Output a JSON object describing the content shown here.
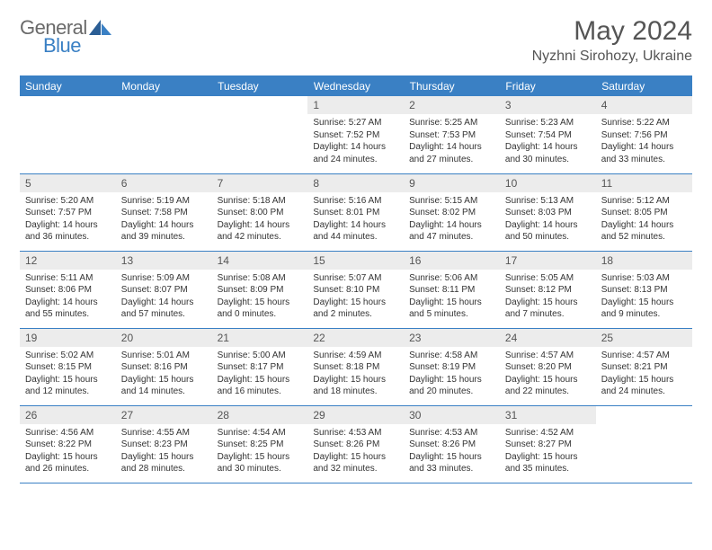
{
  "logo": {
    "text1": "General",
    "text2": "Blue"
  },
  "title": "May 2024",
  "location": "Nyzhni Sirohozy, Ukraine",
  "colors": {
    "header_bg": "#3a80c4",
    "header_text": "#ffffff",
    "daynum_bg": "#ececec",
    "rule": "#3a80c4",
    "title_text": "#555555",
    "logo_gray": "#6a6a6a",
    "logo_blue": "#3a80c4"
  },
  "weekdays": [
    "Sunday",
    "Monday",
    "Tuesday",
    "Wednesday",
    "Thursday",
    "Friday",
    "Saturday"
  ],
  "weeks": [
    [
      {
        "n": "",
        "sr": "",
        "ss": "",
        "dl": ""
      },
      {
        "n": "",
        "sr": "",
        "ss": "",
        "dl": ""
      },
      {
        "n": "",
        "sr": "",
        "ss": "",
        "dl": ""
      },
      {
        "n": "1",
        "sr": "Sunrise: 5:27 AM",
        "ss": "Sunset: 7:52 PM",
        "dl": "Daylight: 14 hours and 24 minutes."
      },
      {
        "n": "2",
        "sr": "Sunrise: 5:25 AM",
        "ss": "Sunset: 7:53 PM",
        "dl": "Daylight: 14 hours and 27 minutes."
      },
      {
        "n": "3",
        "sr": "Sunrise: 5:23 AM",
        "ss": "Sunset: 7:54 PM",
        "dl": "Daylight: 14 hours and 30 minutes."
      },
      {
        "n": "4",
        "sr": "Sunrise: 5:22 AM",
        "ss": "Sunset: 7:56 PM",
        "dl": "Daylight: 14 hours and 33 minutes."
      }
    ],
    [
      {
        "n": "5",
        "sr": "Sunrise: 5:20 AM",
        "ss": "Sunset: 7:57 PM",
        "dl": "Daylight: 14 hours and 36 minutes."
      },
      {
        "n": "6",
        "sr": "Sunrise: 5:19 AM",
        "ss": "Sunset: 7:58 PM",
        "dl": "Daylight: 14 hours and 39 minutes."
      },
      {
        "n": "7",
        "sr": "Sunrise: 5:18 AM",
        "ss": "Sunset: 8:00 PM",
        "dl": "Daylight: 14 hours and 42 minutes."
      },
      {
        "n": "8",
        "sr": "Sunrise: 5:16 AM",
        "ss": "Sunset: 8:01 PM",
        "dl": "Daylight: 14 hours and 44 minutes."
      },
      {
        "n": "9",
        "sr": "Sunrise: 5:15 AM",
        "ss": "Sunset: 8:02 PM",
        "dl": "Daylight: 14 hours and 47 minutes."
      },
      {
        "n": "10",
        "sr": "Sunrise: 5:13 AM",
        "ss": "Sunset: 8:03 PM",
        "dl": "Daylight: 14 hours and 50 minutes."
      },
      {
        "n": "11",
        "sr": "Sunrise: 5:12 AM",
        "ss": "Sunset: 8:05 PM",
        "dl": "Daylight: 14 hours and 52 minutes."
      }
    ],
    [
      {
        "n": "12",
        "sr": "Sunrise: 5:11 AM",
        "ss": "Sunset: 8:06 PM",
        "dl": "Daylight: 14 hours and 55 minutes."
      },
      {
        "n": "13",
        "sr": "Sunrise: 5:09 AM",
        "ss": "Sunset: 8:07 PM",
        "dl": "Daylight: 14 hours and 57 minutes."
      },
      {
        "n": "14",
        "sr": "Sunrise: 5:08 AM",
        "ss": "Sunset: 8:09 PM",
        "dl": "Daylight: 15 hours and 0 minutes."
      },
      {
        "n": "15",
        "sr": "Sunrise: 5:07 AM",
        "ss": "Sunset: 8:10 PM",
        "dl": "Daylight: 15 hours and 2 minutes."
      },
      {
        "n": "16",
        "sr": "Sunrise: 5:06 AM",
        "ss": "Sunset: 8:11 PM",
        "dl": "Daylight: 15 hours and 5 minutes."
      },
      {
        "n": "17",
        "sr": "Sunrise: 5:05 AM",
        "ss": "Sunset: 8:12 PM",
        "dl": "Daylight: 15 hours and 7 minutes."
      },
      {
        "n": "18",
        "sr": "Sunrise: 5:03 AM",
        "ss": "Sunset: 8:13 PM",
        "dl": "Daylight: 15 hours and 9 minutes."
      }
    ],
    [
      {
        "n": "19",
        "sr": "Sunrise: 5:02 AM",
        "ss": "Sunset: 8:15 PM",
        "dl": "Daylight: 15 hours and 12 minutes."
      },
      {
        "n": "20",
        "sr": "Sunrise: 5:01 AM",
        "ss": "Sunset: 8:16 PM",
        "dl": "Daylight: 15 hours and 14 minutes."
      },
      {
        "n": "21",
        "sr": "Sunrise: 5:00 AM",
        "ss": "Sunset: 8:17 PM",
        "dl": "Daylight: 15 hours and 16 minutes."
      },
      {
        "n": "22",
        "sr": "Sunrise: 4:59 AM",
        "ss": "Sunset: 8:18 PM",
        "dl": "Daylight: 15 hours and 18 minutes."
      },
      {
        "n": "23",
        "sr": "Sunrise: 4:58 AM",
        "ss": "Sunset: 8:19 PM",
        "dl": "Daylight: 15 hours and 20 minutes."
      },
      {
        "n": "24",
        "sr": "Sunrise: 4:57 AM",
        "ss": "Sunset: 8:20 PM",
        "dl": "Daylight: 15 hours and 22 minutes."
      },
      {
        "n": "25",
        "sr": "Sunrise: 4:57 AM",
        "ss": "Sunset: 8:21 PM",
        "dl": "Daylight: 15 hours and 24 minutes."
      }
    ],
    [
      {
        "n": "26",
        "sr": "Sunrise: 4:56 AM",
        "ss": "Sunset: 8:22 PM",
        "dl": "Daylight: 15 hours and 26 minutes."
      },
      {
        "n": "27",
        "sr": "Sunrise: 4:55 AM",
        "ss": "Sunset: 8:23 PM",
        "dl": "Daylight: 15 hours and 28 minutes."
      },
      {
        "n": "28",
        "sr": "Sunrise: 4:54 AM",
        "ss": "Sunset: 8:25 PM",
        "dl": "Daylight: 15 hours and 30 minutes."
      },
      {
        "n": "29",
        "sr": "Sunrise: 4:53 AM",
        "ss": "Sunset: 8:26 PM",
        "dl": "Daylight: 15 hours and 32 minutes."
      },
      {
        "n": "30",
        "sr": "Sunrise: 4:53 AM",
        "ss": "Sunset: 8:26 PM",
        "dl": "Daylight: 15 hours and 33 minutes."
      },
      {
        "n": "31",
        "sr": "Sunrise: 4:52 AM",
        "ss": "Sunset: 8:27 PM",
        "dl": "Daylight: 15 hours and 35 minutes."
      },
      {
        "n": "",
        "sr": "",
        "ss": "",
        "dl": ""
      }
    ]
  ]
}
